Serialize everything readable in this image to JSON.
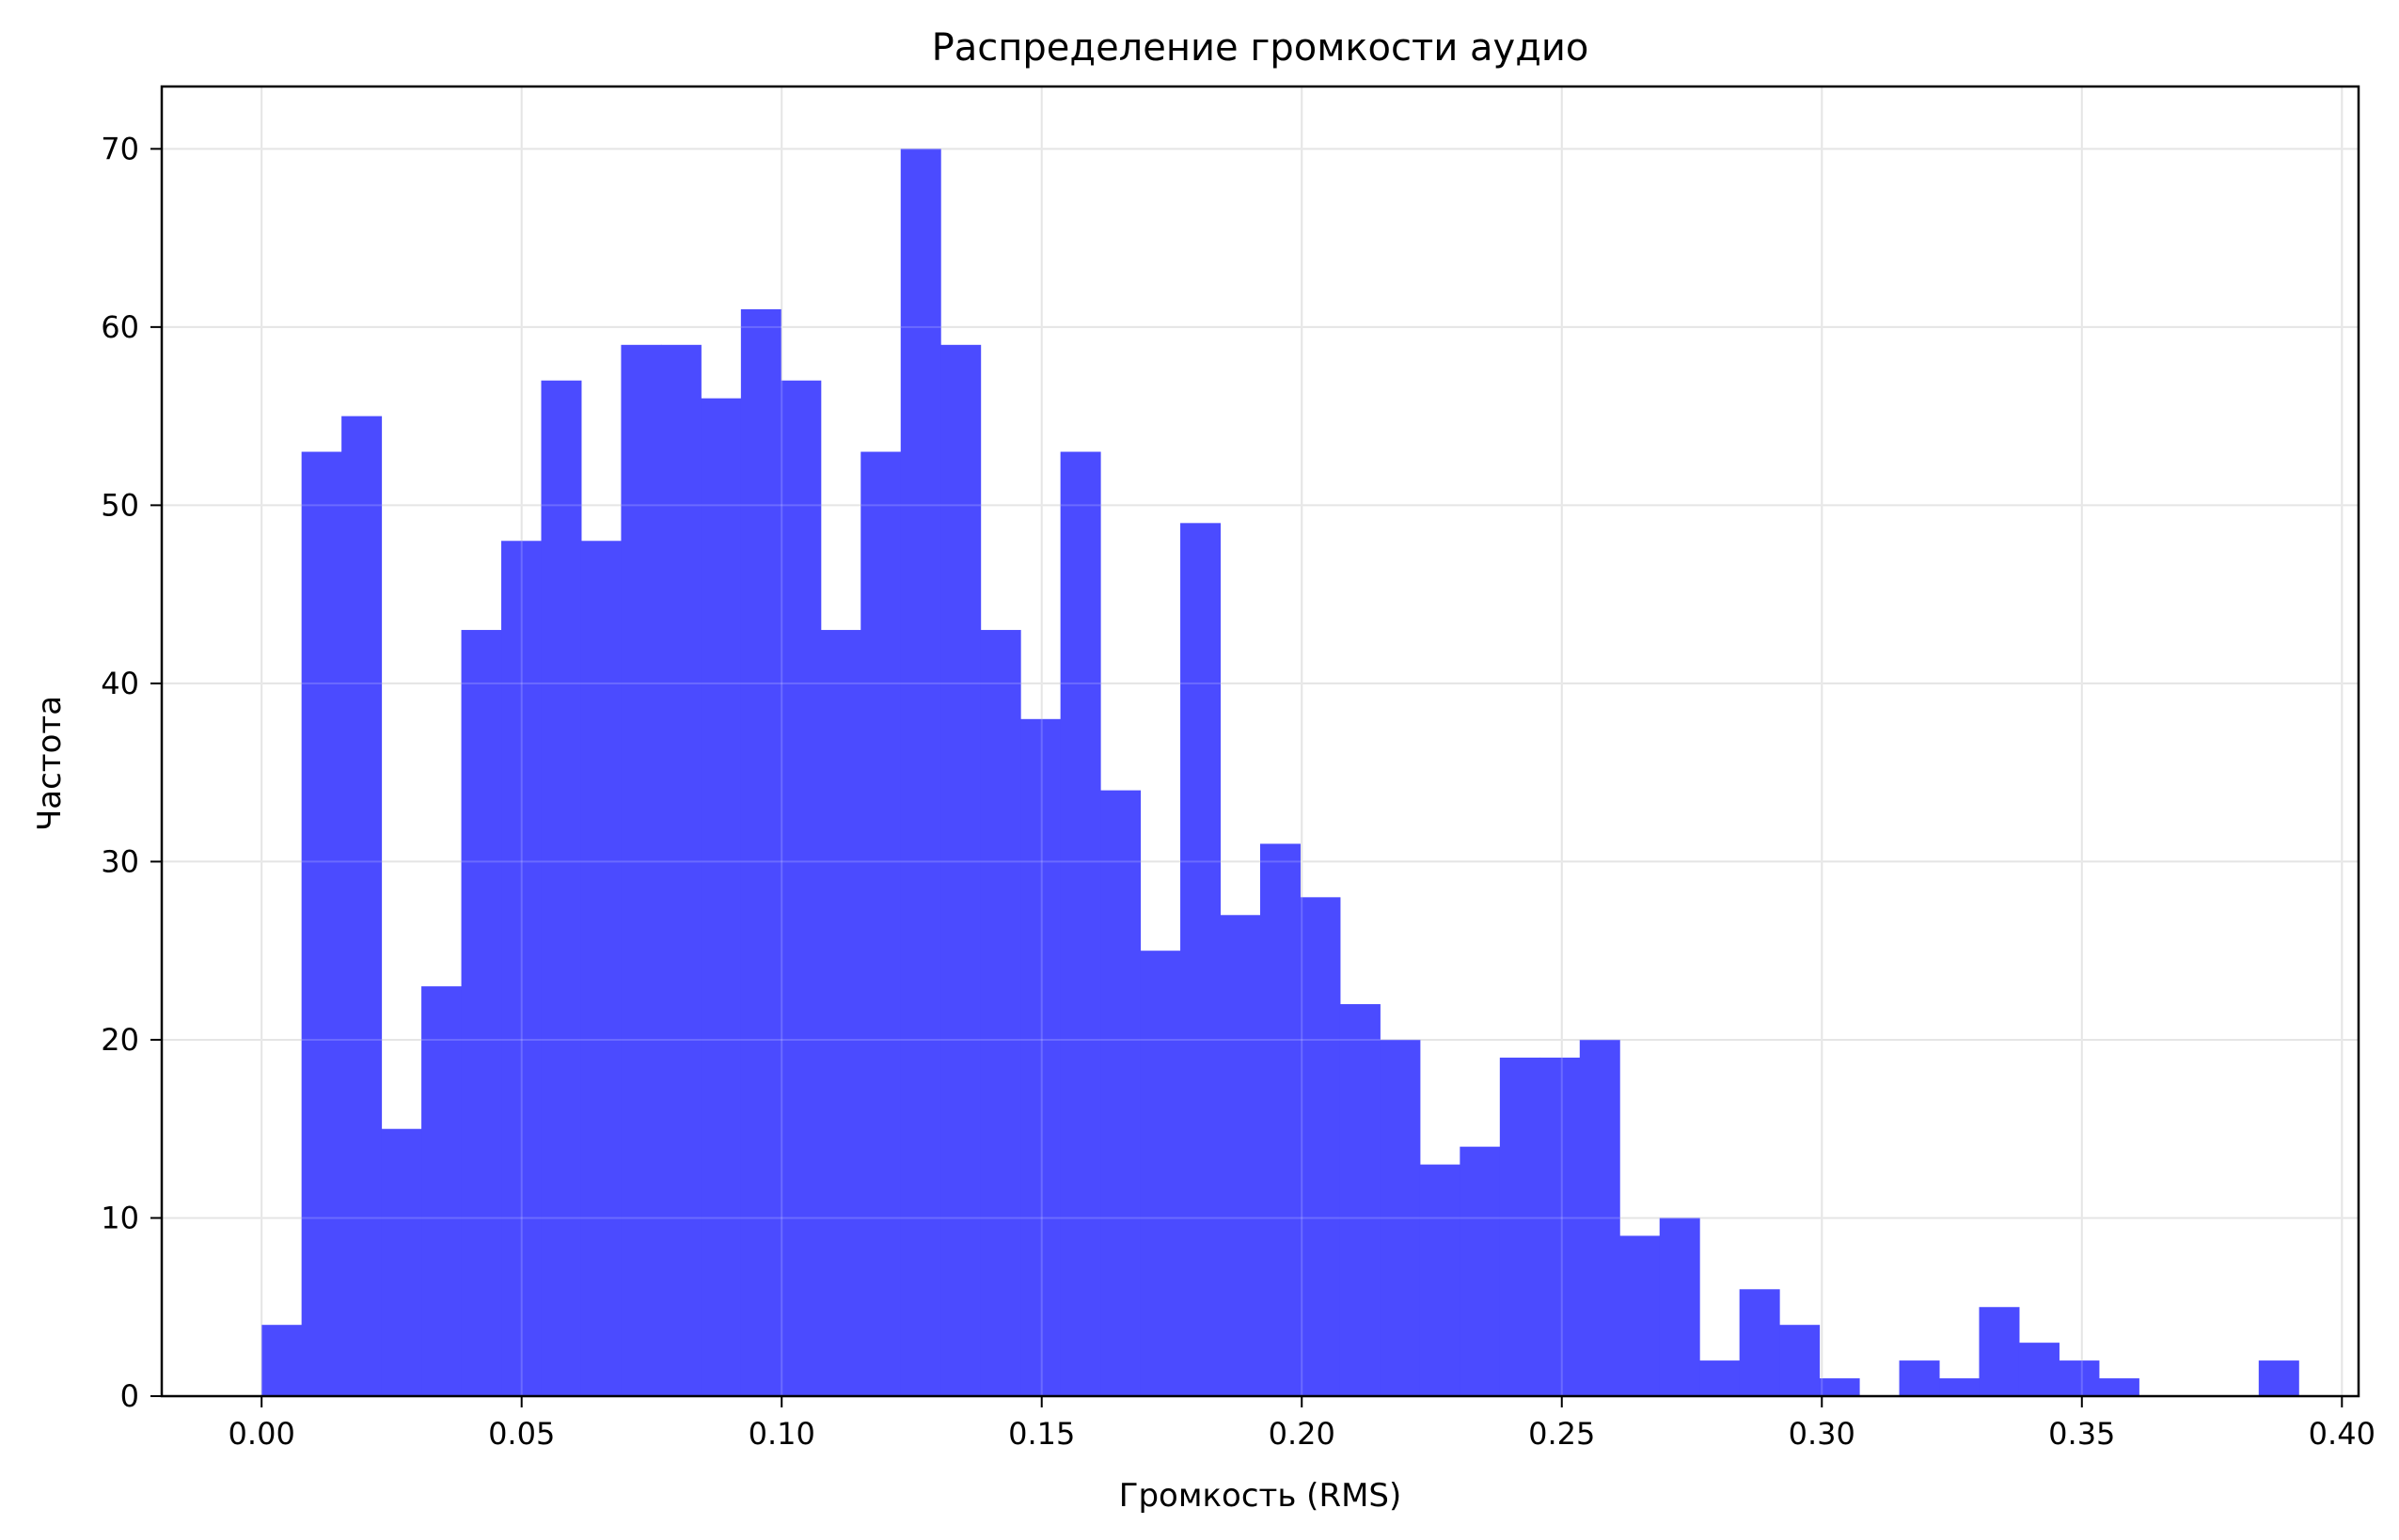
{
  "chart_data": {
    "type": "bar",
    "title": "Распределение громкости аудио",
    "xlabel": "Громкость (RMS)",
    "ylabel": "Частота",
    "xlim": [
      -0.0192,
      0.4032
    ],
    "ylim": [
      0,
      73.5
    ],
    "bin_width": 0.00768,
    "x_start": 0.0,
    "values": [
      4,
      53,
      55,
      15,
      23,
      43,
      48,
      57,
      48,
      59,
      59,
      56,
      61,
      57,
      43,
      53,
      70,
      59,
      43,
      38,
      53,
      34,
      25,
      49,
      27,
      31,
      28,
      22,
      20,
      13,
      14,
      19,
      19,
      20,
      9,
      10,
      2,
      6,
      4,
      1,
      0,
      2,
      1,
      5,
      3,
      2,
      1,
      0,
      0,
      0,
      2
    ],
    "x_ticks": [
      "0.00",
      "0.05",
      "0.10",
      "0.15",
      "0.20",
      "0.25",
      "0.30",
      "0.35",
      "0.40"
    ],
    "x_tick_values": [
      0.0,
      0.05,
      0.1,
      0.15,
      0.2,
      0.25,
      0.3,
      0.35,
      0.4
    ],
    "y_ticks": [
      "0",
      "10",
      "20",
      "30",
      "40",
      "50",
      "60",
      "70"
    ],
    "y_tick_values": [
      0,
      10,
      20,
      30,
      40,
      50,
      60,
      70
    ],
    "grid": true,
    "bar_color": "#4b4bff",
    "grid_color": "#e0e0e0"
  }
}
